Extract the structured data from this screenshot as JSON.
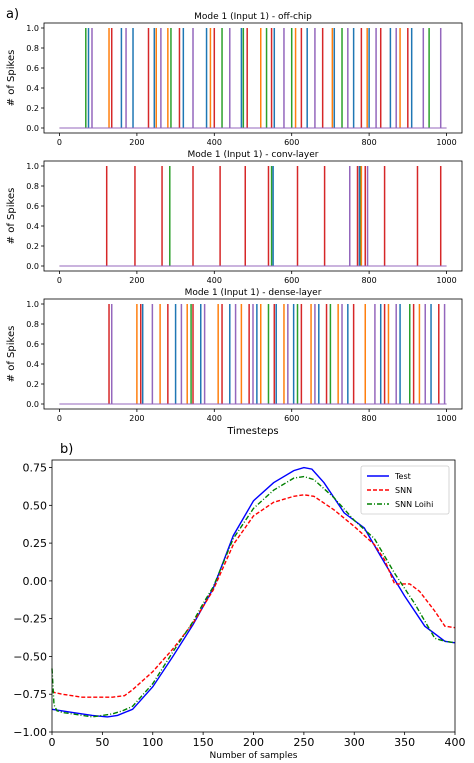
{
  "panel_labels": {
    "a": "a)",
    "b": "b)"
  },
  "spike_colors": [
    "#1f77b4",
    "#ff7f0e",
    "#2ca02c",
    "#d62728",
    "#9467bd"
  ],
  "chart_data": [
    {
      "type": "spike-raster",
      "title": "Mode 1 (Input 1) - off-chip",
      "ylabel": "# of Spikes",
      "xlabel": "",
      "xlim": [
        -40,
        1040
      ],
      "ylim": [
        -0.05,
        1.05
      ],
      "xticks": [
        0,
        200,
        400,
        600,
        800,
        1000
      ],
      "yticks": [
        0.0,
        0.2,
        0.4,
        0.6,
        0.8,
        1.0
      ],
      "baseline": 0.0,
      "series": [
        {
          "color_index": 2,
          "spike_times": [
            68,
            288,
            420,
            475,
            535,
            600,
            730,
            955
          ]
        },
        {
          "color_index": 0,
          "spike_times": [
            75,
            160,
            190,
            245,
            320,
            380,
            470,
            555,
            640,
            710,
            760,
            800,
            855,
            910
          ]
        },
        {
          "color_index": 1,
          "spike_times": [
            128,
            250,
            280,
            390,
            520,
            610,
            705,
            795,
            880
          ]
        },
        {
          "color_index": 3,
          "spike_times": [
            135,
            230,
            310,
            400,
            485,
            548,
            625,
            680,
            780,
            830,
            900
          ]
        },
        {
          "color_index": 4,
          "spike_times": [
            84,
            172,
            262,
            345,
            440,
            580,
            660,
            745,
            818,
            870,
            940,
            985
          ]
        }
      ]
    },
    {
      "type": "spike-raster",
      "title": "Mode 1 (Input 1) - conv-layer",
      "ylabel": "# of Spikes",
      "xlabel": "",
      "xlim": [
        -40,
        1040
      ],
      "ylim": [
        -0.05,
        1.05
      ],
      "xticks": [
        0,
        200,
        400,
        600,
        800,
        1000
      ],
      "yticks": [
        0.0,
        0.2,
        0.4,
        0.6,
        0.8,
        1.0
      ],
      "baseline": 0.0,
      "series": [
        {
          "color_index": 3,
          "spike_times": [
            122,
            195,
            265,
            345,
            415,
            480,
            540,
            615,
            685,
            770,
            790,
            840,
            925,
            985
          ]
        },
        {
          "color_index": 2,
          "spike_times": [
            285,
            548,
            778
          ]
        },
        {
          "color_index": 0,
          "spike_times": [
            552,
            775
          ]
        },
        {
          "color_index": 1,
          "spike_times": [
            780
          ]
        },
        {
          "color_index": 4,
          "spike_times": [
            750,
            796
          ]
        }
      ]
    },
    {
      "type": "spike-raster",
      "title": "Mode 1 (Input 1) - dense-layer",
      "ylabel": "# of Spikes",
      "xlabel": "Timesteps",
      "xlim": [
        -40,
        1040
      ],
      "ylim": [
        -0.05,
        1.05
      ],
      "xticks": [
        0,
        200,
        400,
        600,
        800,
        1000
      ],
      "yticks": [
        0.0,
        0.2,
        0.4,
        0.6,
        0.8,
        1.0
      ],
      "baseline": 0.0,
      "series": [
        {
          "color_index": 1,
          "spike_times": [
            200,
            260,
            330,
            410,
            470,
            520,
            580,
            650,
            720,
            790,
            850,
            930
          ]
        },
        {
          "color_index": 0,
          "spike_times": [
            215,
            300,
            365,
            440,
            510,
            560,
            605,
            670,
            745,
            830,
            880,
            960
          ]
        },
        {
          "color_index": 2,
          "spike_times": [
            340,
            540,
            615,
            700,
            905
          ]
        },
        {
          "color_index": 3,
          "spike_times": [
            128,
            210,
            280,
            345,
            420,
            490,
            555,
            625,
            690,
            760,
            840,
            915,
            980
          ]
        },
        {
          "color_index": 4,
          "spike_times": [
            135,
            240,
            315,
            375,
            455,
            500,
            590,
            660,
            730,
            815,
            870,
            945,
            995
          ]
        }
      ]
    },
    {
      "type": "line",
      "title": "",
      "xlabel": "Number of samples",
      "ylabel": "",
      "xlim": [
        0,
        400
      ],
      "ylim": [
        -1.0,
        0.8
      ],
      "xticks": [
        0,
        50,
        100,
        150,
        200,
        250,
        300,
        350,
        400
      ],
      "yticks": [
        -1.0,
        -0.75,
        -0.5,
        -0.25,
        0.0,
        0.25,
        0.5,
        0.75
      ],
      "ytick_labels": [
        "−1.00",
        "−0.75",
        "−0.50",
        "−0.25",
        "0.00",
        "0.25",
        "0.50",
        "0.75"
      ],
      "legend_position": "top-right",
      "series": [
        {
          "name": "Test",
          "color": "#0000ff",
          "style": "solid",
          "x": [
            0,
            20,
            40,
            55,
            65,
            80,
            100,
            120,
            140,
            160,
            180,
            200,
            220,
            240,
            250,
            258,
            270,
            290,
            310,
            330,
            350,
            370,
            390,
            400
          ],
          "y": [
            -0.85,
            -0.87,
            -0.89,
            -0.9,
            -0.89,
            -0.85,
            -0.7,
            -0.5,
            -0.29,
            -0.05,
            0.3,
            0.53,
            0.65,
            0.73,
            0.75,
            0.74,
            0.65,
            0.45,
            0.35,
            0.12,
            -0.1,
            -0.3,
            -0.4,
            -0.41
          ]
        },
        {
          "name": "SNN",
          "color": "#ff0000",
          "style": "dashed",
          "x": [
            0,
            3,
            10,
            20,
            30,
            40,
            50,
            60,
            72,
            80,
            100,
            120,
            140,
            160,
            180,
            200,
            220,
            240,
            250,
            260,
            280,
            300,
            320,
            330,
            340,
            355,
            365,
            380,
            390,
            400
          ],
          "y": [
            -0.73,
            -0.74,
            -0.75,
            -0.76,
            -0.77,
            -0.77,
            -0.77,
            -0.77,
            -0.76,
            -0.72,
            -0.6,
            -0.45,
            -0.28,
            -0.06,
            0.24,
            0.43,
            0.52,
            0.56,
            0.57,
            0.56,
            0.47,
            0.36,
            0.24,
            0.14,
            -0.02,
            -0.02,
            -0.07,
            -0.2,
            -0.3,
            -0.31
          ]
        },
        {
          "name": "SNN Loihi",
          "color": "#008000",
          "style": "dashdot",
          "x": [
            0,
            2,
            5,
            10,
            20,
            30,
            40,
            50,
            60,
            70,
            80,
            100,
            120,
            140,
            150,
            160,
            180,
            200,
            220,
            240,
            250,
            260,
            280,
            300,
            320,
            340,
            360,
            380,
            390,
            400
          ],
          "y": [
            -0.58,
            -0.82,
            -0.86,
            -0.87,
            -0.88,
            -0.89,
            -0.9,
            -0.89,
            -0.88,
            -0.86,
            -0.83,
            -0.68,
            -0.47,
            -0.27,
            -0.15,
            -0.04,
            0.28,
            0.48,
            0.6,
            0.68,
            0.69,
            0.67,
            0.55,
            0.4,
            0.28,
            0.05,
            -0.15,
            -0.38,
            -0.4,
            -0.41
          ]
        }
      ]
    }
  ]
}
